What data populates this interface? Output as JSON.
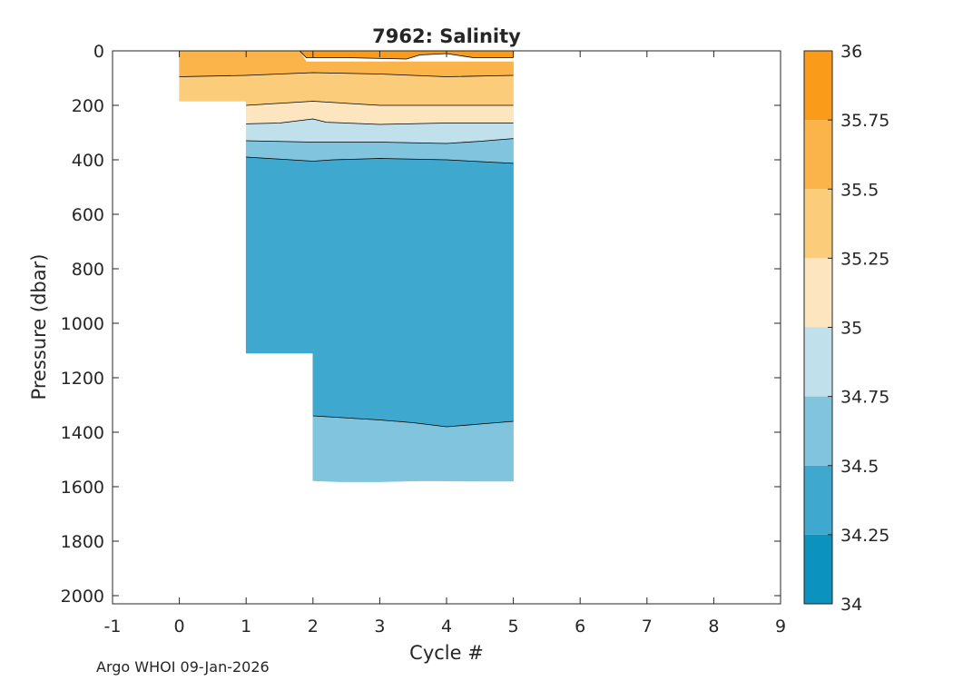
{
  "chart_data": {
    "type": "heatmap",
    "subtype": "filled-contour",
    "title": "7962:  Salinity",
    "xlabel": "Cycle #",
    "ylabel": "Pressure (dbar)",
    "xlim": [
      -1,
      9
    ],
    "ylim": [
      2030,
      0
    ],
    "xticks": [
      -1,
      0,
      1,
      2,
      3,
      4,
      5,
      6,
      7,
      8,
      9
    ],
    "yticks": [
      0,
      200,
      400,
      600,
      800,
      1000,
      1200,
      1400,
      1600,
      1800,
      2000
    ],
    "colorbar": {
      "min": 34,
      "max": 36,
      "ticks": [
        "34",
        "34.25",
        "34.5",
        "34.75",
        "35",
        "35.25",
        "35.5",
        "35.75",
        "36"
      ],
      "levels": [
        34,
        34.25,
        34.5,
        34.75,
        35,
        35.25,
        35.5,
        35.75,
        36
      ],
      "colors": [
        "#0c92bf",
        "#3fa8ce",
        "#80c4de",
        "#c0e0ec",
        "#fce5bf",
        "#fbcd7b",
        "#fbb44a",
        "#fa9c1a"
      ]
    },
    "bands": [
      {
        "salinity_range": [
          35.5,
          35.75
        ],
        "color_index": 6,
        "top": [
          [
            0,
            0
          ],
          [
            1,
            0
          ],
          [
            1.8,
            0
          ],
          [
            1.9,
            40
          ],
          [
            2,
            40
          ],
          [
            5,
            40
          ]
        ],
        "bottom": [
          [
            0,
            95
          ],
          [
            1,
            90
          ],
          [
            2,
            80
          ],
          [
            3,
            85
          ],
          [
            4,
            95
          ],
          [
            5,
            90
          ]
        ]
      },
      {
        "salinity_range": [
          35.25,
          35.5
        ],
        "color_index": 5,
        "top": [
          [
            0,
            95
          ],
          [
            1,
            90
          ],
          [
            2,
            80
          ],
          [
            3,
            85
          ],
          [
            4,
            95
          ],
          [
            5,
            90
          ]
        ],
        "bottom": [
          [
            0,
            185
          ],
          [
            1,
            185
          ],
          [
            1,
            200
          ],
          [
            2,
            185
          ],
          [
            3,
            200
          ],
          [
            4,
            200
          ],
          [
            5,
            200
          ]
        ]
      },
      {
        "salinity_range": [
          35.75,
          36.0
        ],
        "color_index": 7,
        "top": [
          [
            1.8,
            0
          ],
          [
            5,
            0
          ]
        ],
        "bottom": [
          [
            1.8,
            0
          ],
          [
            1.9,
            25
          ],
          [
            2.5,
            25
          ],
          [
            3.4,
            30
          ],
          [
            3.6,
            15
          ],
          [
            4,
            10
          ],
          [
            4.4,
            25
          ],
          [
            5,
            25
          ],
          [
            5,
            0
          ]
        ]
      },
      {
        "salinity_range": [
          35.0,
          35.25
        ],
        "color_index": 4,
        "top": [
          [
            1,
            200
          ],
          [
            2,
            185
          ],
          [
            3,
            200
          ],
          [
            4,
            200
          ],
          [
            5,
            200
          ]
        ],
        "bottom": [
          [
            1,
            268
          ],
          [
            1.5,
            265
          ],
          [
            2,
            250
          ],
          [
            2.2,
            262
          ],
          [
            3,
            270
          ],
          [
            4,
            265
          ],
          [
            5,
            265
          ]
        ]
      },
      {
        "salinity_range": [
          34.75,
          35.0
        ],
        "color_index": 3,
        "top": [
          [
            1,
            268
          ],
          [
            1.5,
            265
          ],
          [
            2,
            250
          ],
          [
            2.2,
            262
          ],
          [
            3,
            270
          ],
          [
            4,
            265
          ],
          [
            5,
            265
          ]
        ],
        "bottom": [
          [
            1,
            330
          ],
          [
            2,
            335
          ],
          [
            3,
            335
          ],
          [
            4,
            340
          ],
          [
            4.5,
            332
          ],
          [
            5,
            322
          ]
        ]
      },
      {
        "salinity_range": [
          34.5,
          34.75
        ],
        "color_index": 2,
        "top": [
          [
            1,
            330
          ],
          [
            2,
            335
          ],
          [
            3,
            335
          ],
          [
            4,
            340
          ],
          [
            4.5,
            332
          ],
          [
            5,
            322
          ]
        ],
        "bottom": [
          [
            1,
            390
          ],
          [
            2,
            405
          ],
          [
            2.3,
            400
          ],
          [
            3,
            395
          ],
          [
            4,
            400
          ],
          [
            5,
            413
          ]
        ]
      },
      {
        "salinity_range": [
          34.25,
          34.5
        ],
        "color_index": 1,
        "top": [
          [
            1,
            390
          ],
          [
            2,
            405
          ],
          [
            2.3,
            400
          ],
          [
            3,
            395
          ],
          [
            4,
            400
          ],
          [
            5,
            413
          ]
        ],
        "bottom": [
          [
            1,
            1110
          ],
          [
            2,
            1110
          ],
          [
            2,
            1340
          ],
          [
            3,
            1355
          ],
          [
            3.5,
            1365
          ],
          [
            4,
            1380
          ],
          [
            4.5,
            1370
          ],
          [
            5,
            1360
          ]
        ]
      },
      {
        "salinity_range": [
          34.5,
          34.75
        ],
        "color_index": 2,
        "top": [
          [
            2,
            1340
          ],
          [
            3,
            1355
          ],
          [
            3.5,
            1365
          ],
          [
            4,
            1380
          ],
          [
            4.5,
            1370
          ],
          [
            5,
            1360
          ]
        ],
        "bottom": [
          [
            2,
            1578
          ],
          [
            2.4,
            1582
          ],
          [
            3,
            1582
          ],
          [
            3.7,
            1578
          ],
          [
            4.4,
            1580
          ],
          [
            5,
            1580
          ]
        ]
      }
    ],
    "contour_lines": [
      [
        [
          0,
          95
        ],
        [
          1,
          90
        ],
        [
          2,
          80
        ],
        [
          3,
          85
        ],
        [
          4,
          95
        ],
        [
          5,
          90
        ]
      ],
      [
        [
          1.8,
          0
        ],
        [
          1.9,
          25
        ],
        [
          2.5,
          25
        ],
        [
          3.4,
          30
        ],
        [
          3.6,
          15
        ],
        [
          4,
          10
        ],
        [
          4.4,
          25
        ],
        [
          5,
          25
        ]
      ],
      [
        [
          1,
          200
        ],
        [
          2,
          185
        ],
        [
          3,
          200
        ],
        [
          4,
          200
        ],
        [
          5,
          200
        ]
      ],
      [
        [
          1,
          268
        ],
        [
          1.5,
          265
        ],
        [
          2,
          250
        ],
        [
          2.2,
          262
        ],
        [
          3,
          270
        ],
        [
          4,
          265
        ],
        [
          5,
          265
        ]
      ],
      [
        [
          1,
          330
        ],
        [
          2,
          335
        ],
        [
          3,
          335
        ],
        [
          4,
          340
        ],
        [
          4.5,
          332
        ],
        [
          5,
          322
        ]
      ],
      [
        [
          1,
          390
        ],
        [
          2,
          405
        ],
        [
          2.3,
          400
        ],
        [
          3,
          395
        ],
        [
          4,
          400
        ],
        [
          5,
          413
        ]
      ],
      [
        [
          2,
          1340
        ],
        [
          3,
          1355
        ],
        [
          3.5,
          1365
        ],
        [
          4,
          1380
        ],
        [
          4.5,
          1370
        ],
        [
          5,
          1360
        ]
      ]
    ]
  },
  "footer": "Argo WHOI 09-Jan-2026"
}
